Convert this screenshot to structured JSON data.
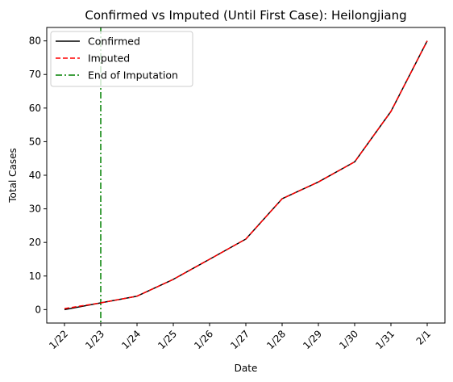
{
  "chart_data": {
    "type": "line",
    "title": "Confirmed vs Imputed (Until First Case): Heilongjiang",
    "xlabel": "Date",
    "ylabel": "Total Cases",
    "categories": [
      "1/22",
      "1/23",
      "1/24",
      "1/25",
      "1/26",
      "1/27",
      "1/28",
      "1/29",
      "1/30",
      "1/31",
      "2/1"
    ],
    "ylim": [
      -4,
      84
    ],
    "yticks": [
      0,
      10,
      20,
      30,
      40,
      50,
      60,
      70,
      80
    ],
    "grid": false,
    "legend_position": "top-left",
    "series": [
      {
        "name": "Confirmed",
        "color": "#000000",
        "style": "solid",
        "values": [
          0,
          2,
          4,
          9,
          15,
          21,
          33,
          38,
          44,
          59,
          80
        ]
      },
      {
        "name": "Imputed",
        "color": "#ff0000",
        "style": "dashed",
        "values": [
          0.3,
          2,
          4,
          9,
          15,
          21,
          33,
          38,
          44,
          59,
          80
        ]
      }
    ],
    "vline": {
      "name": "End of Imputation",
      "category": "1/23",
      "color": "#008000",
      "style": "dashdot"
    }
  }
}
